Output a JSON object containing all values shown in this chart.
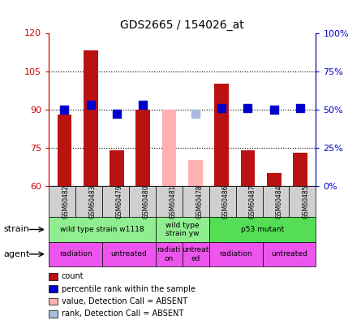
{
  "title": "GDS2665 / 154026_at",
  "samples": [
    "GSM60482",
    "GSM60483",
    "GSM60479",
    "GSM60480",
    "GSM60481",
    "GSM60478",
    "GSM60486",
    "GSM60487",
    "GSM60484",
    "GSM60485"
  ],
  "count_values": [
    88,
    113,
    74,
    90,
    null,
    null,
    100,
    74,
    65,
    73
  ],
  "count_absent_values": [
    null,
    null,
    null,
    null,
    90,
    70,
    null,
    null,
    null,
    null
  ],
  "rank_values": [
    50,
    53,
    47,
    53,
    null,
    null,
    51,
    51,
    50,
    51
  ],
  "rank_absent_values": [
    null,
    null,
    null,
    null,
    null,
    47,
    null,
    null,
    null,
    null
  ],
  "ylim_left": [
    60,
    120
  ],
  "ylim_right": [
    0,
    100
  ],
  "yticks_left": [
    60,
    75,
    90,
    105,
    120
  ],
  "yticks_right": [
    0,
    25,
    50,
    75,
    100
  ],
  "ytick_labels_left": [
    "60",
    "75",
    "90",
    "105",
    "120"
  ],
  "ytick_labels_right": [
    "0%",
    "25%",
    "50%",
    "75%",
    "100%"
  ],
  "strain_groups": [
    {
      "label": "wild type strain w1118",
      "start": 0,
      "end": 4,
      "color": "#90EE90"
    },
    {
      "label": "wild type\nstrain yw",
      "start": 4,
      "end": 6,
      "color": "#90EE90"
    },
    {
      "label": "p53 mutant",
      "start": 6,
      "end": 10,
      "color": "#55DD55"
    }
  ],
  "agent_groups": [
    {
      "label": "radiation",
      "start": 0,
      "end": 2,
      "color": "#EE55EE"
    },
    {
      "label": "untreated",
      "start": 2,
      "end": 4,
      "color": "#EE55EE"
    },
    {
      "label": "radiati\non",
      "start": 4,
      "end": 5,
      "color": "#EE55EE"
    },
    {
      "label": "untreat\ned",
      "start": 5,
      "end": 6,
      "color": "#EE55EE"
    },
    {
      "label": "radiation",
      "start": 6,
      "end": 8,
      "color": "#EE55EE"
    },
    {
      "label": "untreated",
      "start": 8,
      "end": 10,
      "color": "#EE55EE"
    }
  ],
  "bar_color_present": "#BB1111",
  "bar_color_absent": "#FFB0B0",
  "dot_color_present": "#0000CC",
  "dot_color_absent": "#AABBDD",
  "bar_width": 0.55,
  "dot_size": 50,
  "left_axis_color": "#CC0000",
  "right_axis_color": "#0000CC",
  "legend_items": [
    {
      "label": "count",
      "color": "#BB1111"
    },
    {
      "label": "percentile rank within the sample",
      "color": "#0000CC"
    },
    {
      "label": "value, Detection Call = ABSENT",
      "color": "#FFB0B0"
    },
    {
      "label": "rank, Detection Call = ABSENT",
      "color": "#AABBDD"
    }
  ]
}
